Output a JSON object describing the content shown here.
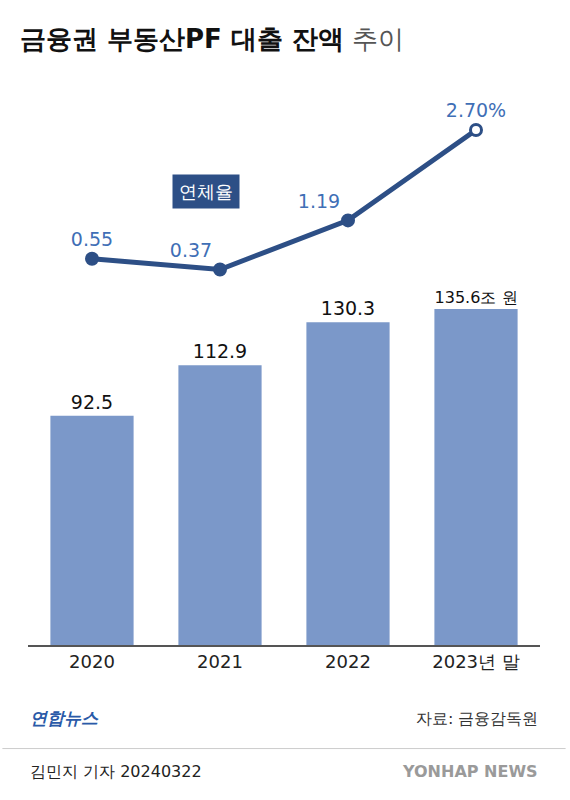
{
  "chart_data": {
    "type": "bar",
    "title": "금융권 부동산PF 대출 잔액 추이",
    "categories": [
      "2020",
      "2021",
      "2022",
      "2023년 말"
    ],
    "series": [
      {
        "type": "bar",
        "color": "#7b98c9",
        "values": [
          92.5,
          112.9,
          130.3,
          135.6
        ],
        "value_labels": [
          "92.5",
          "112.9",
          "130.3",
          "135.6조 원"
        ]
      },
      {
        "name": "연체율",
        "type": "line",
        "axis": "y2",
        "color": "#2d4f86",
        "marker": "circle",
        "values": [
          0.55,
          0.37,
          1.19,
          2.7
        ],
        "value_labels": [
          "0.55",
          "0.37",
          "1.19",
          "2.70%"
        ]
      }
    ],
    "ylim": [
      0,
      220
    ],
    "y2lim": [
      -5.9,
      3.2
    ],
    "data_labels": true,
    "tick_labels": "x",
    "grid": false,
    "source": "자료: 금융감독원",
    "publisher": "연합뉴스",
    "byline": "김민지 기자 20240322",
    "watermark": "YONHAP NEWS"
  }
}
